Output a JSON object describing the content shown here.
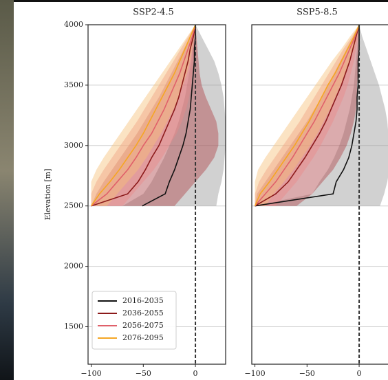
{
  "chart_data": [
    {
      "type": "line",
      "title": "SSP2-4.5",
      "y_label": "Elevation [m]",
      "legend": "lower left",
      "grid": true,
      "xlim": [
        -103,
        29
      ],
      "ylim": [
        1190,
        4000
      ],
      "xticks": [
        {
          "value": -100,
          "label": "−100"
        },
        {
          "value": -50,
          "label": "−50"
        },
        0
      ],
      "yticks": [
        1500,
        2000,
        2500,
        3000,
        3500,
        4000
      ],
      "y": [
        2500,
        2600,
        2700,
        2800,
        2900,
        3000,
        3100,
        3200,
        3300,
        3400,
        3500,
        3600,
        3700,
        3800,
        3900,
        4000
      ],
      "series": [
        {
          "name": "2016-2035",
          "color": "#111111",
          "band_color": "#9a9a9a",
          "values": [
            -51,
            -29,
            -25,
            -20,
            -16,
            -12,
            -9,
            -7,
            -5,
            -4,
            -3,
            -2,
            -1,
            -1,
            0,
            0
          ],
          "lower": [
            -70,
            -50,
            -42,
            -36,
            -30,
            -25,
            -20,
            -16,
            -13,
            -10,
            -8,
            -6,
            -4,
            -3,
            -2,
            0
          ],
          "upper": [
            20,
            22,
            25,
            27,
            28,
            29,
            29,
            29,
            28,
            27,
            25,
            22,
            18,
            12,
            6,
            0
          ]
        },
        {
          "name": "2036-2055",
          "color": "#8b1a1a",
          "band_color": "#b0444a",
          "values": [
            -100,
            -65,
            -55,
            -48,
            -42,
            -35,
            -30,
            -25,
            -20,
            -16,
            -13,
            -10,
            -7,
            -5,
            -2,
            0
          ],
          "lower": [
            -100,
            -95,
            -88,
            -80,
            -72,
            -64,
            -56,
            -49,
            -42,
            -35,
            -29,
            -23,
            -17,
            -11,
            -5,
            0
          ],
          "upper": [
            -20,
            -10,
            0,
            10,
            18,
            22,
            22,
            20,
            15,
            10,
            6,
            4,
            3,
            2,
            1,
            0
          ]
        },
        {
          "name": "2056-2075",
          "color": "#e0606a",
          "band_color": "#ec8a8a",
          "values": [
            -100,
            -85,
            -75,
            -65,
            -57,
            -50,
            -42,
            -36,
            -30,
            -25,
            -20,
            -15,
            -11,
            -7,
            -3,
            0
          ],
          "lower": [
            -100,
            -100,
            -95,
            -88,
            -80,
            -72,
            -64,
            -56,
            -49,
            -42,
            -35,
            -28,
            -21,
            -14,
            -7,
            0
          ],
          "upper": [
            -70,
            -60,
            -50,
            -40,
            -32,
            -25,
            -18,
            -13,
            -9,
            -6,
            -4,
            -3,
            -2,
            -1,
            -1,
            0
          ]
        },
        {
          "name": "2076-2095",
          "color": "#f5a623",
          "band_color": "#f7c27a",
          "values": [
            -100,
            -92,
            -82,
            -73,
            -65,
            -57,
            -50,
            -44,
            -38,
            -32,
            -26,
            -20,
            -15,
            -10,
            -5,
            0
          ],
          "lower": [
            -100,
            -100,
            -100,
            -95,
            -88,
            -80,
            -72,
            -64,
            -56,
            -48,
            -40,
            -32,
            -24,
            -16,
            -8,
            0
          ],
          "upper": [
            -85,
            -75,
            -65,
            -55,
            -47,
            -40,
            -33,
            -27,
            -21,
            -16,
            -12,
            -8,
            -5,
            -3,
            -1,
            0
          ]
        }
      ]
    },
    {
      "type": "line",
      "title": "SSP5-8.5",
      "grid": true,
      "xlim": [
        -103,
        29
      ],
      "ylim": [
        1190,
        4000
      ],
      "xticks": [
        {
          "value": -100,
          "label": "−100"
        },
        {
          "value": -50,
          "label": "−50"
        },
        0
      ],
      "yticks": [
        1500,
        2000,
        2500,
        3000,
        3500,
        4000
      ],
      "y": [
        2500,
        2600,
        2700,
        2800,
        2900,
        3000,
        3100,
        3200,
        3300,
        3400,
        3500,
        3600,
        3700,
        3800,
        3900,
        4000
      ],
      "series": [
        {
          "color": "#111111",
          "band_color": "#9a9a9a",
          "values": [
            -100,
            -25,
            -22,
            -15,
            -10,
            -7,
            -5,
            -3,
            -2,
            -2,
            -1,
            -1,
            -1,
            0,
            0,
            0
          ],
          "lower": [
            -100,
            -45,
            -38,
            -30,
            -24,
            -19,
            -15,
            -12,
            -9,
            -7,
            -5,
            -4,
            -3,
            -2,
            -1,
            0
          ],
          "upper": [
            20,
            24,
            27,
            29,
            29,
            29,
            28,
            27,
            25,
            22,
            19,
            15,
            11,
            7,
            3,
            0
          ]
        },
        {
          "color": "#8b1a1a",
          "band_color": "#b0444a",
          "values": [
            -100,
            -80,
            -68,
            -60,
            -52,
            -45,
            -38,
            -32,
            -27,
            -22,
            -17,
            -13,
            -9,
            -6,
            -3,
            0
          ],
          "lower": [
            -100,
            -98,
            -90,
            -82,
            -74,
            -66,
            -58,
            -50,
            -43,
            -36,
            -30,
            -24,
            -18,
            -12,
            -6,
            0
          ],
          "upper": [
            -60,
            -45,
            -35,
            -25,
            -18,
            -12,
            -8,
            -5,
            -3,
            -2,
            -2,
            -1,
            -1,
            0,
            0,
            0
          ]
        },
        {
          "color": "#e0606a",
          "band_color": "#ec8a8a",
          "values": [
            -100,
            -90,
            -80,
            -72,
            -64,
            -57,
            -50,
            -43,
            -37,
            -31,
            -25,
            -19,
            -14,
            -9,
            -4,
            0
          ],
          "lower": [
            -100,
            -100,
            -96,
            -89,
            -81,
            -73,
            -65,
            -57,
            -50,
            -43,
            -36,
            -29,
            -22,
            -15,
            -7,
            0
          ],
          "upper": [
            -80,
            -70,
            -60,
            -52,
            -44,
            -37,
            -31,
            -25,
            -20,
            -15,
            -11,
            -8,
            -5,
            -3,
            -1,
            0
          ]
        },
        {
          "color": "#f5a623",
          "band_color": "#f7c27a",
          "values": [
            -100,
            -95,
            -86,
            -78,
            -70,
            -62,
            -55,
            -48,
            -42,
            -36,
            -30,
            -23,
            -17,
            -11,
            -5,
            0
          ],
          "lower": [
            -100,
            -100,
            -100,
            -97,
            -90,
            -82,
            -74,
            -66,
            -58,
            -50,
            -42,
            -34,
            -26,
            -17,
            -9,
            0
          ],
          "upper": [
            -90,
            -82,
            -72,
            -63,
            -55,
            -47,
            -40,
            -34,
            -28,
            -23,
            -18,
            -13,
            -9,
            -5,
            -2,
            0
          ]
        }
      ]
    }
  ]
}
